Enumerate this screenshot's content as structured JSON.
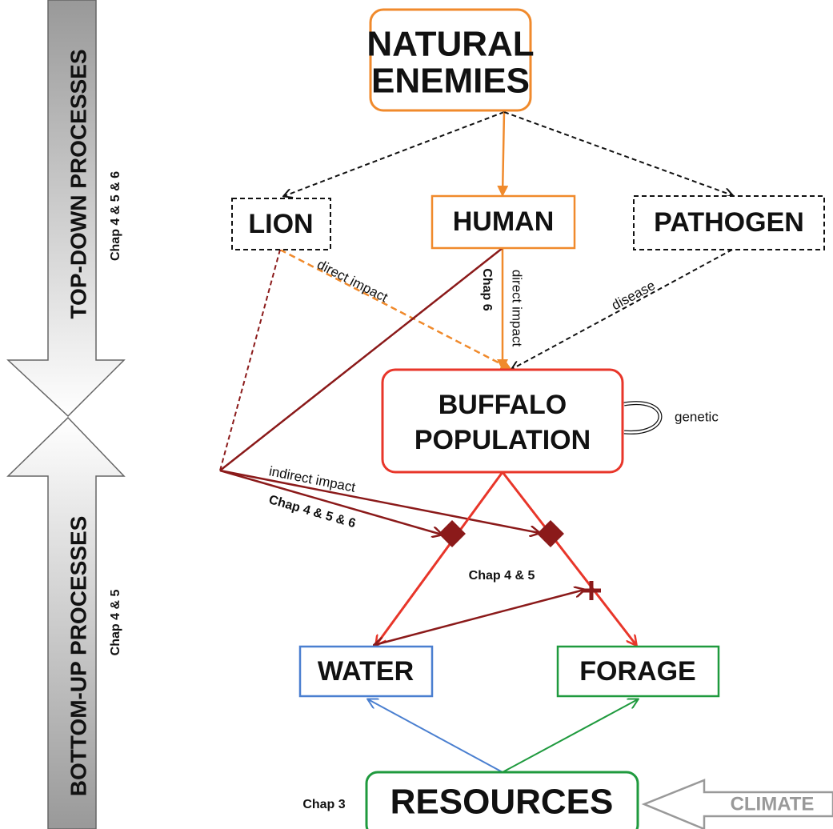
{
  "side": {
    "top_down": "TOP-DOWN PROCESSES",
    "bottom_up": "BOTTOM-UP PROCESSES",
    "top_down_chapters": "Chap 4 & 5 & 6",
    "bottom_up_chapters": "Chap 4 & 5"
  },
  "nodes": {
    "natural_enemies": [
      "NATURAL",
      "ENEMIES"
    ],
    "lion": "LION",
    "human": "HUMAN",
    "pathogen": "PATHOGEN",
    "buffalo": [
      "BUFFALO",
      "POPULATION"
    ],
    "water": "WATER",
    "forage": "FORAGE",
    "resources": "RESOURCES",
    "climate": "CLIMATE"
  },
  "edge_labels": {
    "lion_direct": "direct impact",
    "human_direct": "direct impact",
    "human_chapter": "Chap 6",
    "disease": "disease",
    "genetic": "genetic",
    "indirect": "indirect impact",
    "indirect_chapters": "Chap 4 & 5 & 6",
    "resource_use_chapters": "Chap 4 & 5",
    "resources_chapter": "Chap 3"
  }
}
